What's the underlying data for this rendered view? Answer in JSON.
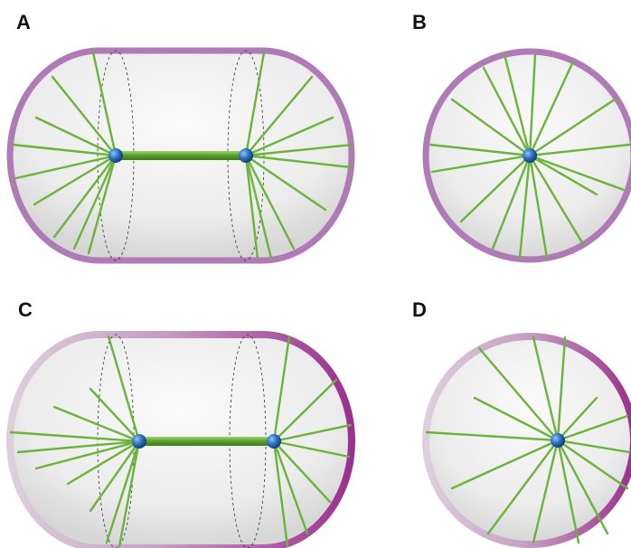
{
  "panels": [
    {
      "label": "A",
      "shape": "capsule",
      "membrane": "uniform"
    },
    {
      "label": "B",
      "shape": "circle",
      "membrane": "uniform"
    },
    {
      "label": "C",
      "shape": "capsule",
      "membrane": "gradient"
    },
    {
      "label": "D",
      "shape": "circle",
      "membrane": "gradient"
    }
  ],
  "colors": {
    "membrane": "#b07ab7",
    "membrane_dark": "#9b2f8e",
    "membrane_light": "#d9c6d8",
    "microtubule": "#6bb33a",
    "spindle_pole": "#2f6fbf",
    "cytoplasm": "#eeeeee"
  }
}
